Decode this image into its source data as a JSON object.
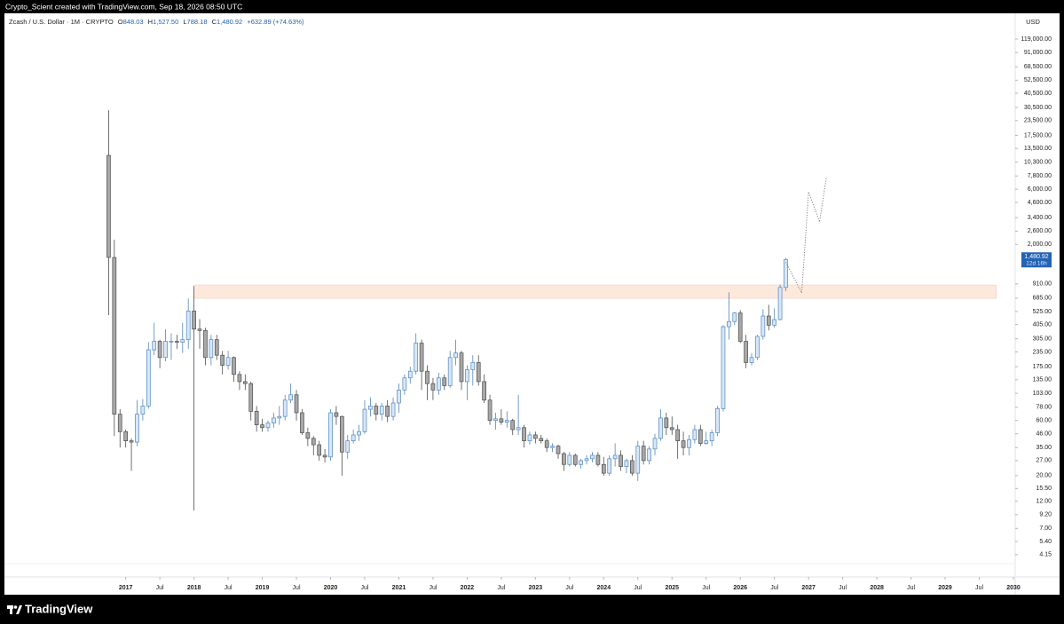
{
  "header": "Crypto_Scient created with TradingView.com, Sep 18, 2026 08:50 UTC",
  "footer": "TradingView",
  "chart_data": {
    "type": "candlestick",
    "legend": {
      "symbol": "Zcash / U.S. Dollar · 1M · CRYPTO",
      "items": [
        {
          "key": "O",
          "value": "848.03"
        },
        {
          "key": "H",
          "value": "1,527.50"
        },
        {
          "key": "L",
          "value": "788.18"
        },
        {
          "key": "C",
          "value": "1,480.92"
        }
      ],
      "change": "+632.89 (+74.63%)"
    },
    "currency": "USD",
    "last_price_label": "1,480.92",
    "countdown": "12d 16h",
    "log_scale": true,
    "up_color": "#d8e7f6",
    "up_border": "#4f86c2",
    "down_color": "#a8a8a8",
    "down_border": "#4d4d4d",
    "zone_color": "#fde8dc",
    "price_tag_color": "#2463b4",
    "x": [
      2016.75,
      2016.8333,
      2016.9167,
      2017,
      2017.0833,
      2017.1667,
      2017.25,
      2017.3333,
      2017.4167,
      2017.5,
      2017.5833,
      2017.6667,
      2017.75,
      2017.8333,
      2017.9167,
      2018,
      2018.0833,
      2018.1667,
      2018.25,
      2018.3333,
      2018.4167,
      2018.5,
      2018.5833,
      2018.6667,
      2018.75,
      2018.8333,
      2018.9167,
      2019,
      2019.0833,
      2019.1667,
      2019.25,
      2019.3333,
      2019.4167,
      2019.5,
      2019.5833,
      2019.6667,
      2019.75,
      2019.8333,
      2019.9167,
      2020,
      2020.0833,
      2020.1667,
      2020.25,
      2020.3333,
      2020.4167,
      2020.5,
      2020.5833,
      2020.6667,
      2020.75,
      2020.8333,
      2020.9167,
      2021,
      2021.0833,
      2021.1667,
      2021.25,
      2021.3333,
      2021.4167,
      2021.5,
      2021.5833,
      2021.6667,
      2021.75,
      2021.8333,
      2021.9167,
      2022,
      2022.0833,
      2022.1667,
      2022.25,
      2022.3333,
      2022.4167,
      2022.5,
      2022.5833,
      2022.6667,
      2022.75,
      2022.8333,
      2022.9167,
      2023,
      2023.0833,
      2023.1667,
      2023.25,
      2023.3333,
      2023.4167,
      2023.5,
      2023.5833,
      2023.6667,
      2023.75,
      2023.8333,
      2023.9167,
      2024,
      2024.0833,
      2024.1667,
      2024.25,
      2024.3333,
      2024.4167,
      2024.5,
      2024.5833,
      2024.6667,
      2024.75,
      2024.8333,
      2024.9167,
      2025,
      2025.0833,
      2025.1667,
      2025.25,
      2025.3333,
      2025.4167,
      2025.5,
      2025.5833,
      2025.6667,
      2025.75,
      2025.8333,
      2025.9167,
      2026,
      2026.0833,
      2026.1667,
      2026.25,
      2026.3333,
      2026.4167,
      2026.5,
      2026.5833,
      2026.6667
    ],
    "open": [
      11750,
      1540,
      68,
      48,
      40,
      39,
      68,
      80,
      245,
      290,
      210,
      290,
      290,
      285,
      300,
      530,
      370,
      360,
      210,
      300,
      220,
      180,
      210,
      150,
      130,
      125,
      72,
      55,
      52,
      57,
      63,
      65,
      90,
      100,
      70,
      47,
      42,
      37,
      30,
      29,
      70,
      65,
      32,
      40,
      45,
      48,
      75,
      80,
      68,
      80,
      65,
      85,
      110,
      140,
      160,
      280,
      160,
      125,
      110,
      140,
      120,
      210,
      230,
      130,
      165,
      190,
      130,
      90,
      60,
      62,
      58,
      60,
      50,
      52,
      40,
      45,
      42,
      40,
      35,
      36,
      31,
      25,
      30,
      25,
      27,
      28,
      30,
      25,
      21,
      28,
      30,
      24,
      27,
      21,
      36,
      27,
      34,
      42,
      63,
      52,
      50,
      40,
      35,
      41,
      50,
      38,
      40,
      47,
      76,
      388,
      430,
      510,
      290,
      190,
      210,
      320,
      480,
      400,
      447,
      848.03
    ],
    "high": [
      28900,
      2190,
      75,
      50,
      42,
      90,
      92,
      285,
      420,
      300,
      370,
      340,
      330,
      420,
      680,
      870,
      450,
      380,
      330,
      330,
      240,
      240,
      215,
      160,
      150,
      130,
      80,
      62,
      60,
      70,
      80,
      100,
      125,
      110,
      75,
      52,
      44,
      40,
      34,
      75,
      80,
      66,
      45,
      50,
      55,
      90,
      95,
      85,
      85,
      90,
      95,
      125,
      150,
      175,
      340,
      300,
      180,
      140,
      155,
      150,
      240,
      300,
      240,
      180,
      220,
      220,
      150,
      100,
      70,
      75,
      72,
      62,
      100,
      55,
      48,
      48,
      45,
      42,
      38,
      37,
      32,
      32,
      31,
      28,
      30,
      32,
      32,
      29,
      30,
      38,
      33,
      28,
      30,
      40,
      40,
      36,
      46,
      75,
      70,
      65,
      55,
      48,
      45,
      55,
      55,
      48,
      50,
      80,
      400,
      770,
      520,
      540,
      330,
      230,
      330,
      550,
      600,
      560,
      900,
      1527.5
    ],
    "low": [
      489,
      44,
      35,
      35,
      22,
      36,
      60,
      76,
      220,
      170,
      195,
      200,
      250,
      230,
      250,
      10,
      250,
      180,
      180,
      200,
      150,
      165,
      130,
      110,
      110,
      60,
      48,
      48,
      48,
      52,
      55,
      60,
      85,
      60,
      45,
      36,
      30,
      27,
      26,
      27,
      55,
      20,
      28,
      38,
      40,
      46,
      65,
      60,
      60,
      58,
      60,
      70,
      100,
      125,
      150,
      110,
      90,
      90,
      100,
      110,
      115,
      180,
      110,
      90,
      120,
      120,
      85,
      55,
      50,
      55,
      52,
      45,
      45,
      35,
      37,
      38,
      38,
      32,
      32,
      28,
      22,
      24,
      24,
      23,
      25,
      26,
      24,
      20,
      20,
      24,
      22,
      21,
      20,
      18,
      25,
      25,
      30,
      40,
      45,
      45,
      28,
      30,
      30,
      38,
      36,
      37,
      36,
      44,
      72,
      300,
      400,
      280,
      170,
      180,
      200,
      300,
      360,
      380,
      440,
      788.18
    ],
    "close": [
      1540,
      68,
      48,
      40,
      39,
      68,
      80,
      245,
      290,
      210,
      290,
      290,
      285,
      300,
      530,
      370,
      360,
      210,
      300,
      220,
      180,
      210,
      150,
      130,
      125,
      72,
      55,
      52,
      57,
      63,
      65,
      90,
      100,
      70,
      47,
      42,
      37,
      30,
      29,
      70,
      65,
      32,
      40,
      45,
      48,
      75,
      80,
      68,
      80,
      65,
      85,
      110,
      140,
      160,
      280,
      160,
      125,
      110,
      140,
      120,
      210,
      230,
      130,
      165,
      190,
      130,
      90,
      60,
      62,
      58,
      60,
      50,
      52,
      40,
      45,
      42,
      40,
      35,
      36,
      31,
      25,
      30,
      25,
      27,
      28,
      30,
      25,
      21,
      28,
      30,
      24,
      27,
      21,
      36,
      27,
      34,
      42,
      63,
      52,
      50,
      40,
      35,
      41,
      50,
      38,
      40,
      47,
      76,
      388,
      430,
      510,
      290,
      190,
      210,
      320,
      480,
      400,
      447,
      848.03,
      1480.92
    ],
    "zone": {
      "x": [
        2018,
        2029.75
      ],
      "y": [
        683,
        890
      ]
    },
    "projection": {
      "x": [
        2026.6667,
        2026.9,
        2027,
        2027.16,
        2027.26
      ],
      "y": [
        1400,
        760,
        5690,
        3120,
        7550
      ]
    },
    "xlim": [
      2015.25,
      2030
    ],
    "xticks": [
      2017,
      {
        "value": 2017.5,
        "label": "Jul"
      },
      2018,
      {
        "value": 2018.5,
        "label": "Jul"
      },
      2019,
      {
        "value": 2019.5,
        "label": "Jul"
      },
      2020,
      {
        "value": 2020.5,
        "label": "Jul"
      },
      2021,
      {
        "value": 2021.5,
        "label": "Jul"
      },
      2022,
      {
        "value": 2022.5,
        "label": "Jul"
      },
      2023,
      {
        "value": 2023.5,
        "label": "Jul"
      },
      2024,
      {
        "value": 2024.5,
        "label": "Jul"
      },
      2025,
      {
        "value": 2025.5,
        "label": "Jul"
      },
      2026,
      {
        "value": 2026.5,
        "label": "Jul"
      },
      2027,
      {
        "value": 2027.5,
        "label": "Jul"
      },
      2028,
      {
        "value": 2028.5,
        "label": "Jul"
      },
      2029,
      {
        "value": 2029.5,
        "label": "Jul"
      },
      2030
    ],
    "ylim": [
      3.47,
      198700
    ],
    "yticks": [
      {
        "value": 119000,
        "label": "119,000.00"
      },
      {
        "value": 91000,
        "label": "91,000.00"
      },
      {
        "value": 68500,
        "label": "68,500.00"
      },
      {
        "value": 52500,
        "label": "52,500.00"
      },
      {
        "value": 40500,
        "label": "40,500.00"
      },
      {
        "value": 30500,
        "label": "30,500.00"
      },
      {
        "value": 23500,
        "label": "23,500.00"
      },
      {
        "value": 17500,
        "label": "17,500.00"
      },
      {
        "value": 13500,
        "label": "13,500.00"
      },
      {
        "value": 10300,
        "label": "10,300.00"
      },
      {
        "value": 7800,
        "label": "7,800.00"
      },
      {
        "value": 6000,
        "label": "6,000.00"
      },
      {
        "value": 4600,
        "label": "4,600.00"
      },
      {
        "value": 3400,
        "label": "3,400.00"
      },
      {
        "value": 2600,
        "label": "2,600.00"
      },
      {
        "value": 2000,
        "label": "2,000.00"
      },
      {
        "value": 910,
        "label": "910.00"
      },
      {
        "value": 685,
        "label": "685.00"
      },
      {
        "value": 525,
        "label": "525.00"
      },
      {
        "value": 405,
        "label": "405.00"
      },
      {
        "value": 305,
        "label": "305.00"
      },
      {
        "value": 235,
        "label": "235.00"
      },
      {
        "value": 175,
        "label": "175.00"
      },
      {
        "value": 135,
        "label": "135.00"
      },
      {
        "value": 103,
        "label": "103.00"
      },
      {
        "value": 78,
        "label": "78.00"
      },
      {
        "value": 60,
        "label": "60.00"
      },
      {
        "value": 46,
        "label": "46.00"
      },
      {
        "value": 35,
        "label": "35.00"
      },
      {
        "value": 27,
        "label": "27.00"
      },
      {
        "value": 20,
        "label": "20.00"
      },
      {
        "value": 15.5,
        "label": "15.50"
      },
      {
        "value": 12,
        "label": "12.00"
      },
      {
        "value": 9.2,
        "label": "9.20"
      },
      {
        "value": 7,
        "label": "7.00"
      },
      {
        "value": 5.4,
        "label": "5.40"
      },
      {
        "value": 4.15,
        "label": "4.15"
      }
    ]
  }
}
